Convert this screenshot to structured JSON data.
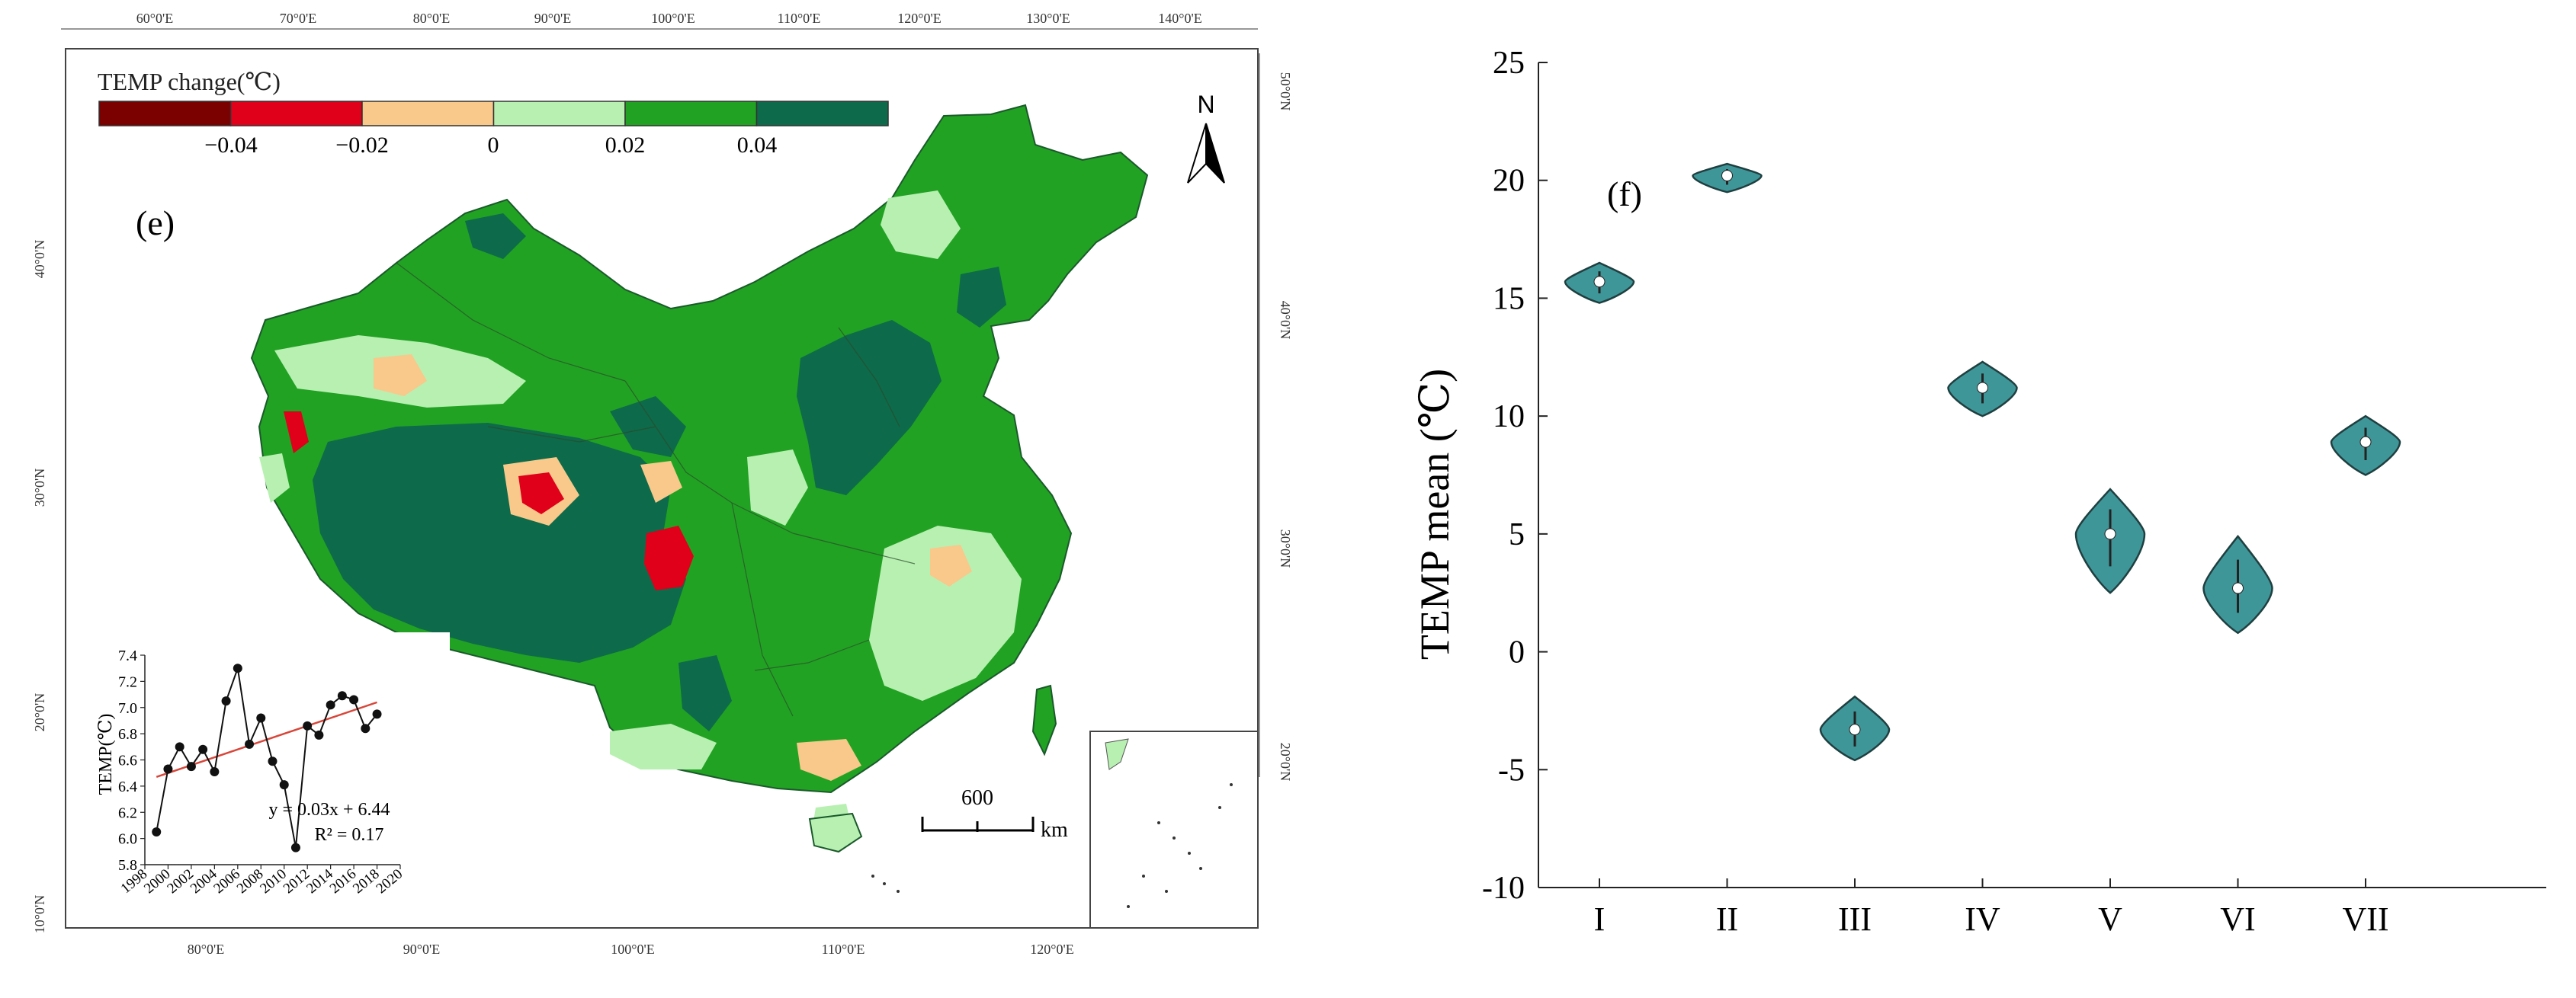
{
  "chart_data": [
    {
      "type": "map",
      "panel_label": "(e)",
      "legend": {
        "title": "TEMP change(℃)",
        "colors": [
          "#7b0000",
          "#e0001a",
          "#f8c98a",
          "#b8f0b2",
          "#21a223",
          "#0d6a4a"
        ],
        "tick_labels": [
          "−0.04",
          "−0.02",
          "0",
          "0.02",
          "0.04"
        ]
      },
      "top_ticks": [
        "60°0'E",
        "70°0'E",
        "80°0'E",
        "90°0'E",
        "100°0'E",
        "110°0'E",
        "120°0'E",
        "130°0'E",
        "140°0'E"
      ],
      "bottom_ticks": [
        "80°0'E",
        "90°0'E",
        "100°0'E",
        "110°0'E",
        "120°0'E"
      ],
      "left_ticks": [
        "40°0'N",
        "30°0'N",
        "20°0'N",
        "10°0'N"
      ],
      "right_ticks": [
        "50°0'N",
        "40°0'N",
        "30°0'N",
        "20°0'N"
      ],
      "north_label": "N",
      "scale_bar": {
        "value": "600",
        "unit": "km"
      }
    },
    {
      "type": "line",
      "inset_of": "(e)",
      "ylabel": "TEMP(℃)",
      "x": [
        1999,
        2000,
        2001,
        2002,
        2003,
        2004,
        2005,
        2006,
        2007,
        2008,
        2009,
        2010,
        2011,
        2012,
        2013,
        2014,
        2015,
        2016,
        2017,
        2018
      ],
      "y": [
        6.05,
        6.53,
        6.7,
        6.55,
        6.68,
        6.51,
        7.05,
        7.3,
        6.72,
        6.92,
        6.59,
        6.41,
        5.93,
        6.86,
        6.79,
        7.02,
        7.09,
        7.06,
        6.84,
        6.95
      ],
      "trend": {
        "slope": 0.03,
        "intercept": 6.44,
        "equation": "y = 0.03x + 6.44",
        "r2": "R² = 0.17",
        "color": "#d8463a"
      },
      "x_ticks": [
        "1998",
        "2000",
        "2002",
        "2004",
        "2006",
        "2008",
        "2010",
        "2012",
        "2014",
        "2016",
        "2018",
        "2020"
      ],
      "y_ticks": [
        "5.8",
        "6.0",
        "6.2",
        "6.4",
        "6.6",
        "6.8",
        "7.0",
        "7.2",
        "7.4"
      ],
      "xlim": [
        1998,
        2020
      ],
      "ylim": [
        5.8,
        7.4
      ]
    },
    {
      "type": "violin",
      "panel_label": "(f)",
      "ylabel": "TEMP mean (℃)",
      "categories": [
        "I",
        "II",
        "III",
        "IV",
        "V",
        "VI",
        "VII"
      ],
      "medians": [
        15.7,
        20.2,
        -3.3,
        11.2,
        5.0,
        2.7,
        8.9
      ],
      "ranges": [
        [
          14.8,
          16.5
        ],
        [
          19.5,
          20.7
        ],
        [
          -4.6,
          -1.9
        ],
        [
          10.0,
          12.3
        ],
        [
          2.5,
          6.9
        ],
        [
          0.8,
          4.9
        ],
        [
          7.5,
          10.0
        ]
      ],
      "y_ticks": [
        "-10",
        "-5",
        "0",
        "5",
        "10",
        "15",
        "20",
        "25"
      ],
      "ylim": [
        -10,
        25
      ],
      "fill_color": "#3f9698"
    }
  ]
}
